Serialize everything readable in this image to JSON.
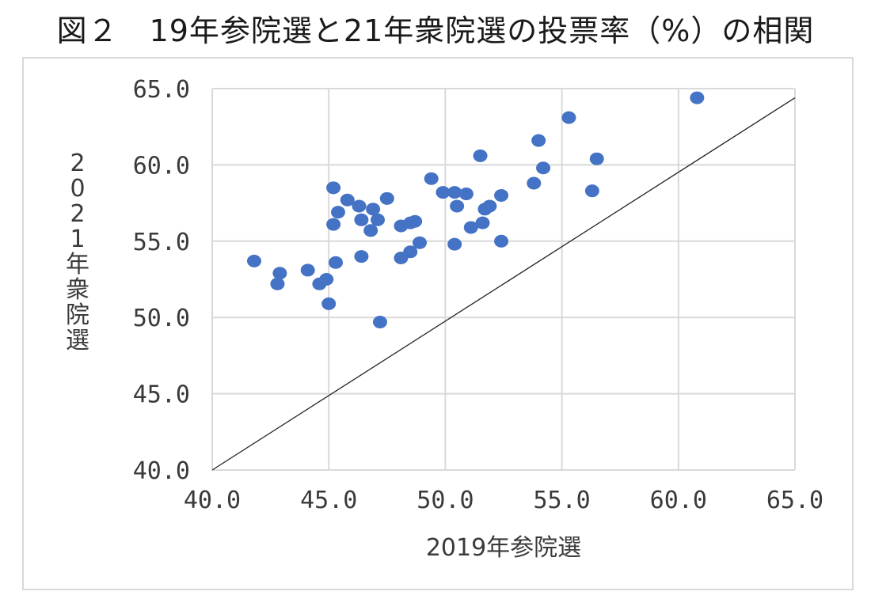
{
  "title": "図２　19年参院選と21年衆院選の投票率（%）の相関",
  "chart_data": {
    "type": "scatter",
    "title": "図２　19年参院選と21年衆院選の投票率（%）の相関",
    "xlabel": "2019年参院選",
    "ylabel": "2021年衆院選",
    "xlim": [
      40.0,
      65.0
    ],
    "ylim": [
      40.0,
      65.0
    ],
    "x_ticks": [
      "40.0",
      "45.0",
      "50.0",
      "55.0",
      "60.0",
      "65.0"
    ],
    "y_ticks": [
      "40.0",
      "45.0",
      "50.0",
      "55.0",
      "60.0",
      "65.0"
    ],
    "grid": true,
    "legend": "none",
    "marker_color": "#4472c4",
    "reference_line": {
      "from": [
        40.0,
        40.0
      ],
      "to": [
        65.0,
        64.4
      ],
      "color": "#222222"
    },
    "points": [
      [
        41.8,
        53.7
      ],
      [
        42.8,
        52.2
      ],
      [
        42.9,
        52.9
      ],
      [
        44.1,
        53.1
      ],
      [
        44.6,
        52.2
      ],
      [
        44.9,
        52.5
      ],
      [
        45.0,
        50.9
      ],
      [
        45.2,
        58.5
      ],
      [
        45.2,
        56.1
      ],
      [
        45.3,
        53.6
      ],
      [
        45.4,
        56.9
      ],
      [
        45.8,
        57.7
      ],
      [
        46.3,
        57.3
      ],
      [
        46.4,
        56.4
      ],
      [
        46.4,
        54.0
      ],
      [
        46.8,
        55.7
      ],
      [
        46.9,
        57.1
      ],
      [
        47.1,
        56.4
      ],
      [
        47.2,
        49.7
      ],
      [
        47.5,
        57.8
      ],
      [
        48.1,
        56.0
      ],
      [
        48.1,
        53.9
      ],
      [
        48.5,
        56.2
      ],
      [
        48.5,
        54.3
      ],
      [
        48.7,
        56.3
      ],
      [
        48.9,
        54.9
      ],
      [
        49.4,
        59.1
      ],
      [
        49.9,
        58.2
      ],
      [
        50.4,
        58.2
      ],
      [
        50.4,
        54.8
      ],
      [
        50.5,
        57.3
      ],
      [
        50.9,
        58.1
      ],
      [
        51.1,
        55.9
      ],
      [
        51.6,
        56.2
      ],
      [
        51.5,
        60.6
      ],
      [
        51.7,
        57.1
      ],
      [
        51.9,
        57.3
      ],
      [
        52.4,
        58.0
      ],
      [
        52.4,
        55.0
      ],
      [
        53.8,
        58.8
      ],
      [
        54.0,
        61.6
      ],
      [
        54.2,
        59.8
      ],
      [
        55.3,
        63.1
      ],
      [
        56.3,
        58.3
      ],
      [
        56.5,
        60.4
      ],
      [
        60.8,
        64.4
      ]
    ]
  }
}
